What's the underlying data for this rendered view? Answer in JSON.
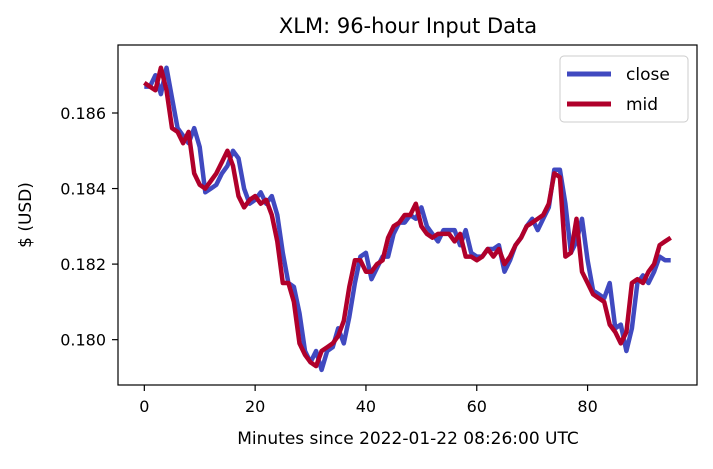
{
  "chart_data": {
    "type": "line",
    "title": "XLM: 96-hour Input Data",
    "xlabel": "Minutes since 2022-01-22 08:26:00 UTC",
    "ylabel": "$ (USD)",
    "xlim": [
      -4.75,
      99.75
    ],
    "ylim": [
      0.1788,
      0.1878
    ],
    "x_ticks": [
      0,
      20,
      40,
      60,
      80
    ],
    "y_ticks": [
      0.18,
      0.182,
      0.184,
      0.186
    ],
    "x_tick_labels": [
      "0",
      "20",
      "40",
      "60",
      "80"
    ],
    "y_tick_labels": [
      "0.180",
      "0.182",
      "0.184",
      "0.186"
    ],
    "grid": false,
    "legend": {
      "placement": "top-right",
      "items": [
        "close",
        "mid"
      ]
    },
    "series": [
      {
        "name": "close",
        "color": "#4049c0",
        "x": [
          0,
          1,
          2,
          3,
          4,
          5,
          6,
          7,
          8,
          9,
          10,
          11,
          12,
          13,
          14,
          15,
          16,
          17,
          18,
          19,
          20,
          21,
          22,
          23,
          24,
          25,
          26,
          27,
          28,
          29,
          30,
          31,
          32,
          33,
          34,
          35,
          36,
          37,
          38,
          39,
          40,
          41,
          42,
          43,
          44,
          45,
          46,
          47,
          48,
          49,
          50,
          51,
          52,
          53,
          54,
          55,
          56,
          57,
          58,
          59,
          60,
          61,
          62,
          63,
          64,
          65,
          66,
          67,
          68,
          69,
          70,
          71,
          72,
          73,
          74,
          75,
          76,
          77,
          78,
          79,
          80,
          81,
          82,
          83,
          84,
          85,
          86,
          87,
          88,
          89,
          90,
          91,
          92,
          93,
          94,
          95
        ],
        "values": [
          0.1867,
          0.1867,
          0.187,
          0.1865,
          0.1872,
          0.1864,
          0.1856,
          0.1854,
          0.1852,
          0.1856,
          0.1851,
          0.1839,
          0.184,
          0.1841,
          0.1844,
          0.1846,
          0.185,
          0.1848,
          0.184,
          0.1836,
          0.1837,
          0.1839,
          0.1836,
          0.1838,
          0.1833,
          0.1823,
          0.1815,
          0.1814,
          0.1807,
          0.1797,
          0.1794,
          0.1797,
          0.1792,
          0.1797,
          0.1798,
          0.1803,
          0.1799,
          0.1806,
          0.1815,
          0.1822,
          0.1823,
          0.1816,
          0.1819,
          0.1822,
          0.1822,
          0.1828,
          0.1831,
          0.1831,
          0.1833,
          0.1832,
          0.1835,
          0.183,
          0.1828,
          0.1826,
          0.1829,
          0.1829,
          0.1829,
          0.1825,
          0.1829,
          0.1823,
          0.1822,
          0.1822,
          0.1824,
          0.1824,
          0.1825,
          0.1818,
          0.1821,
          0.1825,
          0.1827,
          0.183,
          0.1832,
          0.1829,
          0.1832,
          0.1835,
          0.1845,
          0.1845,
          0.1836,
          0.1823,
          0.1826,
          0.1832,
          0.1821,
          0.1813,
          0.1812,
          0.1811,
          0.1815,
          0.1803,
          0.1804,
          0.1797,
          0.1803,
          0.1815,
          0.1817,
          0.1815,
          0.1818,
          0.1822,
          0.1821,
          0.1821
        ]
      },
      {
        "name": "mid",
        "color": "#b0002b",
        "x": [
          0,
          1,
          2,
          3,
          4,
          5,
          6,
          7,
          8,
          9,
          10,
          11,
          12,
          13,
          14,
          15,
          16,
          17,
          18,
          19,
          20,
          21,
          22,
          23,
          24,
          25,
          26,
          27,
          28,
          29,
          30,
          31,
          32,
          33,
          34,
          35,
          36,
          37,
          38,
          39,
          40,
          41,
          42,
          43,
          44,
          45,
          46,
          47,
          48,
          49,
          50,
          51,
          52,
          53,
          54,
          55,
          56,
          57,
          58,
          59,
          60,
          61,
          62,
          63,
          64,
          65,
          66,
          67,
          68,
          69,
          70,
          71,
          72,
          73,
          74,
          75,
          76,
          77,
          78,
          79,
          80,
          81,
          82,
          83,
          84,
          85,
          86,
          87,
          88,
          89,
          90,
          91,
          92,
          93,
          94,
          95
        ],
        "values": [
          0.1868,
          0.1867,
          0.1866,
          0.1872,
          0.1866,
          0.1856,
          0.1855,
          0.1852,
          0.1855,
          0.1844,
          0.1841,
          0.184,
          0.1842,
          0.1844,
          0.1847,
          0.185,
          0.1846,
          0.1838,
          0.1835,
          0.1837,
          0.1838,
          0.1836,
          0.1837,
          0.1833,
          0.1826,
          0.1815,
          0.1815,
          0.181,
          0.1799,
          0.1796,
          0.1794,
          0.1793,
          0.1797,
          0.1798,
          0.1799,
          0.1801,
          0.1805,
          0.1814,
          0.1821,
          0.1821,
          0.1818,
          0.1818,
          0.182,
          0.1821,
          0.1827,
          0.183,
          0.1831,
          0.1833,
          0.1833,
          0.1836,
          0.183,
          0.1828,
          0.1827,
          0.1828,
          0.1828,
          0.1828,
          0.1826,
          0.1828,
          0.1822,
          0.1822,
          0.1821,
          0.1822,
          0.1824,
          0.1822,
          0.1824,
          0.182,
          0.1822,
          0.1825,
          0.1827,
          0.183,
          0.1831,
          0.1832,
          0.1833,
          0.1836,
          0.1844,
          0.1843,
          0.1822,
          0.1823,
          0.1832,
          0.1818,
          0.1815,
          0.1812,
          0.1811,
          0.181,
          0.1804,
          0.1802,
          0.1799,
          0.1802,
          0.1815,
          0.1816,
          0.1815,
          0.1818,
          0.182,
          0.1825,
          0.1826,
          0.1827
        ]
      }
    ]
  }
}
